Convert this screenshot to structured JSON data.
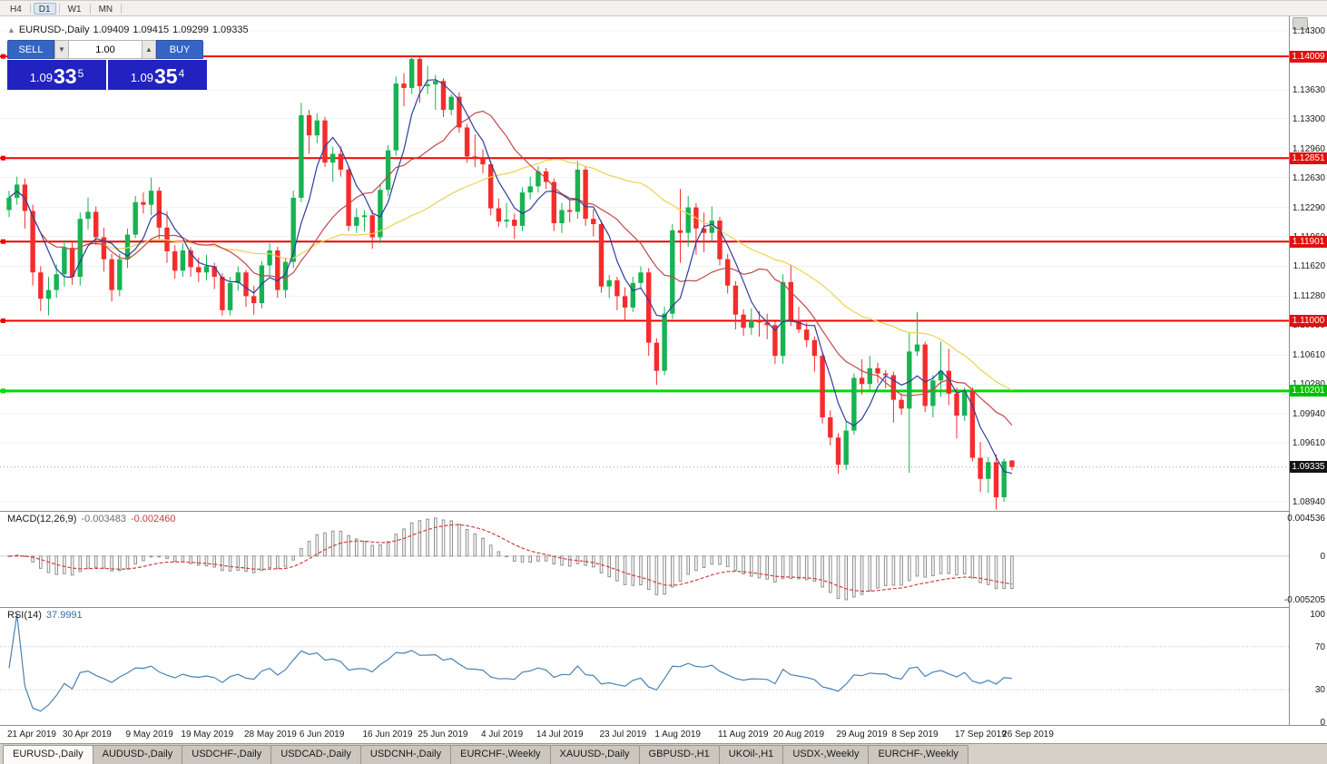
{
  "icons": {
    "collapse_arrow": "▲",
    "spin_down": "▼",
    "spin_up": "▲"
  },
  "toolbar": {
    "timeframes": [
      {
        "label": "H4",
        "active": false
      },
      {
        "label": "D1",
        "active": true
      },
      {
        "label": "W1",
        "active": false
      },
      {
        "label": "MN",
        "active": false
      }
    ]
  },
  "readout": {
    "symbol": "EURUSD-,Daily",
    "open": "1.09409",
    "high": "1.09415",
    "low": "1.09299",
    "close": "1.09335"
  },
  "trade_panel": {
    "sell_label": "SELL",
    "buy_label": "BUY",
    "volume": "1.00",
    "bid": {
      "prefix": "1.09",
      "big": "33",
      "sup": "5"
    },
    "ask": {
      "prefix": "1.09",
      "big": "35",
      "sup": "4"
    }
  },
  "price_axis": {
    "plain_labels": [
      "1.14300",
      "1.13630",
      "1.13300",
      "1.12960",
      "1.12630",
      "1.12290",
      "1.11960",
      "1.11620",
      "1.11280",
      "1.10950",
      "1.10610",
      "1.10280",
      "1.09940",
      "1.09610",
      "1.08940"
    ],
    "tags": [
      {
        "label": "1.14009",
        "bg": "#e01010",
        "fg": "#ffffff"
      },
      {
        "label": "1.12851",
        "bg": "#e01010",
        "fg": "#ffffff"
      },
      {
        "label": "1.11901",
        "bg": "#e01010",
        "fg": "#ffffff"
      },
      {
        "label": "1.11000",
        "bg": "#e01010",
        "fg": "#ffffff"
      },
      {
        "label": "1.10201",
        "bg": "#00c000",
        "fg": "#ffffff"
      },
      {
        "label": "1.09335",
        "bg": "#141414",
        "fg": "#ffffff"
      }
    ]
  },
  "chart_data": {
    "type": "candlestick",
    "title": "EURUSD-,Daily",
    "price_range": {
      "top": 1.14465,
      "bottom": 1.08836
    },
    "up_color": "#17b352",
    "down_color": "#f52c2c",
    "grid_color": "#f2f2f2",
    "current_price": 1.09335,
    "horizontal_lines": [
      {
        "price": 1.14009,
        "color": "#f00000",
        "width": 2
      },
      {
        "price": 1.12851,
        "color": "#f00000",
        "width": 2
      },
      {
        "price": 1.11901,
        "color": "#f00000",
        "width": 2
      },
      {
        "price": 1.11,
        "color": "#f00000",
        "width": 2
      },
      {
        "price": 1.10201,
        "color": "#00dc00",
        "width": 3
      }
    ],
    "ma_lines": [
      {
        "period": 5,
        "color": "#2e3d9c"
      },
      {
        "period": 13,
        "color": "#c04848"
      },
      {
        "period": 34,
        "color": "#ecd24e"
      }
    ],
    "date_ticks": [
      {
        "label": "21 Apr 2019",
        "index": 0
      },
      {
        "label": "30 Apr 2019",
        "index": 7
      },
      {
        "label": "9 May 2019",
        "index": 15
      },
      {
        "label": "19 May 2019",
        "index": 22
      },
      {
        "label": "28 May 2019",
        "index": 30
      },
      {
        "label": "6 Jun 2019",
        "index": 37
      },
      {
        "label": "16 Jun 2019",
        "index": 45
      },
      {
        "label": "25 Jun 2019",
        "index": 52
      },
      {
        "label": "4 Jul 2019",
        "index": 60
      },
      {
        "label": "14 Jul 2019",
        "index": 67
      },
      {
        "label": "23 Jul 2019",
        "index": 75
      },
      {
        "label": "1 Aug 2019",
        "index": 82
      },
      {
        "label": "11 Aug 2019",
        "index": 90
      },
      {
        "label": "20 Aug 2019",
        "index": 97
      },
      {
        "label": "29 Aug 2019",
        "index": 105
      },
      {
        "label": "8 Sep 2019",
        "index": 112
      },
      {
        "label": "17 Sep 2019",
        "index": 120
      },
      {
        "label": "26 Sep 2019",
        "index": 126
      }
    ],
    "candles": [
      [
        1.1226,
        1.1248,
        1.1218,
        1.124
      ],
      [
        1.124,
        1.1264,
        1.1232,
        1.1255
      ],
      [
        1.1255,
        1.1262,
        1.1205,
        1.1225
      ],
      [
        1.1225,
        1.1232,
        1.114,
        1.1155
      ],
      [
        1.1155,
        1.1162,
        1.1111,
        1.1125
      ],
      [
        1.1125,
        1.115,
        1.1106,
        1.1135
      ],
      [
        1.1135,
        1.1164,
        1.1126,
        1.1153
      ],
      [
        1.1153,
        1.1192,
        1.1139,
        1.1183
      ],
      [
        1.1183,
        1.119,
        1.1141,
        1.115
      ],
      [
        1.115,
        1.1223,
        1.114,
        1.1216
      ],
      [
        1.1216,
        1.124,
        1.1204,
        1.1224
      ],
      [
        1.1224,
        1.123,
        1.1186,
        1.1195
      ],
      [
        1.1195,
        1.1206,
        1.1156,
        1.117
      ],
      [
        1.117,
        1.1176,
        1.1122,
        1.1135
      ],
      [
        1.1135,
        1.1176,
        1.1128,
        1.117
      ],
      [
        1.117,
        1.1205,
        1.116,
        1.1198
      ],
      [
        1.1198,
        1.1242,
        1.1194,
        1.1235
      ],
      [
        1.1235,
        1.1246,
        1.1222,
        1.1232
      ],
      [
        1.1232,
        1.1263,
        1.122,
        1.1248
      ],
      [
        1.1248,
        1.1252,
        1.1192,
        1.1206
      ],
      [
        1.1206,
        1.1224,
        1.1166,
        1.1179
      ],
      [
        1.1179,
        1.1186,
        1.1148,
        1.1157
      ],
      [
        1.1157,
        1.1188,
        1.115,
        1.118
      ],
      [
        1.118,
        1.1184,
        1.115,
        1.1161
      ],
      [
        1.1161,
        1.1172,
        1.1144,
        1.1155
      ],
      [
        1.1155,
        1.1175,
        1.1146,
        1.1162
      ],
      [
        1.1162,
        1.1166,
        1.1136,
        1.115
      ],
      [
        1.115,
        1.1154,
        1.1106,
        1.1112
      ],
      [
        1.1112,
        1.115,
        1.1106,
        1.1143
      ],
      [
        1.1143,
        1.1162,
        1.1134,
        1.1155
      ],
      [
        1.1155,
        1.1158,
        1.1116,
        1.1128
      ],
      [
        1.1128,
        1.114,
        1.1107,
        1.112
      ],
      [
        1.112,
        1.1168,
        1.1114,
        1.1163
      ],
      [
        1.1163,
        1.1188,
        1.1152,
        1.118
      ],
      [
        1.118,
        1.1184,
        1.1126,
        1.1135
      ],
      [
        1.1135,
        1.1172,
        1.1126,
        1.1167
      ],
      [
        1.1167,
        1.1248,
        1.116,
        1.124
      ],
      [
        1.124,
        1.1348,
        1.1235,
        1.1334
      ],
      [
        1.1334,
        1.134,
        1.129,
        1.1311
      ],
      [
        1.1311,
        1.1336,
        1.1302,
        1.1328
      ],
      [
        1.1328,
        1.1332,
        1.1275,
        1.128
      ],
      [
        1.128,
        1.1298,
        1.1258,
        1.129
      ],
      [
        1.129,
        1.1298,
        1.1264,
        1.1272
      ],
      [
        1.1272,
        1.1276,
        1.1202,
        1.1208
      ],
      [
        1.1208,
        1.1228,
        1.12,
        1.1218
      ],
      [
        1.1218,
        1.1226,
        1.1202,
        1.122
      ],
      [
        1.122,
        1.1226,
        1.1182,
        1.1195
      ],
      [
        1.1195,
        1.1256,
        1.1188,
        1.1249
      ],
      [
        1.1249,
        1.13,
        1.1242,
        1.1294
      ],
      [
        1.1294,
        1.1378,
        1.1288,
        1.137
      ],
      [
        1.137,
        1.1382,
        1.1344,
        1.1365
      ],
      [
        1.1365,
        1.1401,
        1.1358,
        1.1398
      ],
      [
        1.1398,
        1.14,
        1.1348,
        1.1367
      ],
      [
        1.1367,
        1.139,
        1.1358,
        1.1369
      ],
      [
        1.1369,
        1.138,
        1.134,
        1.1373
      ],
      [
        1.1373,
        1.1376,
        1.1332,
        1.134
      ],
      [
        1.134,
        1.1358,
        1.1334,
        1.1355
      ],
      [
        1.1355,
        1.136,
        1.1314,
        1.132
      ],
      [
        1.132,
        1.1324,
        1.128,
        1.1287
      ],
      [
        1.1287,
        1.1312,
        1.1275,
        1.1285
      ],
      [
        1.1285,
        1.1295,
        1.1268,
        1.1278
      ],
      [
        1.1278,
        1.1282,
        1.122,
        1.1228
      ],
      [
        1.1228,
        1.1239,
        1.1207,
        1.1213
      ],
      [
        1.1213,
        1.1234,
        1.1206,
        1.1215
      ],
      [
        1.1215,
        1.1222,
        1.1193,
        1.1208
      ],
      [
        1.1208,
        1.1252,
        1.1202,
        1.1246
      ],
      [
        1.1246,
        1.1264,
        1.1238,
        1.1253
      ],
      [
        1.1253,
        1.1276,
        1.1246,
        1.127
      ],
      [
        1.127,
        1.1274,
        1.125,
        1.1258
      ],
      [
        1.1258,
        1.1262,
        1.1202,
        1.1211
      ],
      [
        1.1211,
        1.1234,
        1.12,
        1.1226
      ],
      [
        1.1226,
        1.1238,
        1.1212,
        1.1224
      ],
      [
        1.1224,
        1.1282,
        1.1216,
        1.1272
      ],
      [
        1.1272,
        1.1276,
        1.1208,
        1.1216
      ],
      [
        1.1216,
        1.1227,
        1.1196,
        1.121
      ],
      [
        1.121,
        1.1214,
        1.1132,
        1.1139
      ],
      [
        1.1139,
        1.1152,
        1.1126,
        1.1146
      ],
      [
        1.1146,
        1.115,
        1.1112,
        1.1128
      ],
      [
        1.1128,
        1.1138,
        1.1101,
        1.1115
      ],
      [
        1.1115,
        1.115,
        1.111,
        1.1143
      ],
      [
        1.1143,
        1.1162,
        1.1136,
        1.1155
      ],
      [
        1.1155,
        1.116,
        1.106,
        1.1075
      ],
      [
        1.1075,
        1.108,
        1.1027,
        1.1043
      ],
      [
        1.1043,
        1.1116,
        1.1038,
        1.1108
      ],
      [
        1.1108,
        1.121,
        1.1102,
        1.1203
      ],
      [
        1.1203,
        1.125,
        1.1166,
        1.12
      ],
      [
        1.12,
        1.1242,
        1.1184,
        1.1229
      ],
      [
        1.1229,
        1.1234,
        1.1175,
        1.1205
      ],
      [
        1.1205,
        1.1223,
        1.1178,
        1.12
      ],
      [
        1.12,
        1.123,
        1.119,
        1.1214
      ],
      [
        1.1214,
        1.1218,
        1.1163,
        1.117
      ],
      [
        1.117,
        1.1176,
        1.1131,
        1.114
      ],
      [
        1.114,
        1.1145,
        1.109,
        1.1107
      ],
      [
        1.1107,
        1.1113,
        1.1083,
        1.1092
      ],
      [
        1.1092,
        1.1114,
        1.1084,
        1.11
      ],
      [
        1.11,
        1.1111,
        1.1082,
        1.1098
      ],
      [
        1.1098,
        1.1108,
        1.1079,
        1.1095
      ],
      [
        1.1095,
        1.1099,
        1.1051,
        1.106
      ],
      [
        1.106,
        1.1153,
        1.1051,
        1.1144
      ],
      [
        1.1144,
        1.1164,
        1.1094,
        1.1101
      ],
      [
        1.1101,
        1.1116,
        1.1086,
        1.109
      ],
      [
        1.109,
        1.1098,
        1.107,
        1.1078
      ],
      [
        1.1078,
        1.1082,
        1.1042,
        1.106
      ],
      [
        1.106,
        1.1065,
        1.0983,
        1.099
      ],
      [
        1.099,
        1.0998,
        1.0958,
        1.0967
      ],
      [
        1.0967,
        1.0972,
        1.0926,
        1.0936
      ],
      [
        1.0936,
        1.0985,
        1.093,
        1.0975
      ],
      [
        1.0975,
        1.104,
        1.097,
        1.1035
      ],
      [
        1.1035,
        1.1056,
        1.1016,
        1.1028
      ],
      [
        1.1028,
        1.106,
        1.102,
        1.1046
      ],
      [
        1.1046,
        1.1052,
        1.1029,
        1.104
      ],
      [
        1.104,
        1.1044,
        1.1023,
        1.1038
      ],
      [
        1.1038,
        1.1042,
        1.0984,
        1.101
      ],
      [
        1.101,
        1.1017,
        1.0993,
        1.1
      ],
      [
        1.1,
        1.1087,
        1.0927,
        1.1065
      ],
      [
        1.1065,
        1.111,
        1.106,
        1.1073
      ],
      [
        1.1073,
        1.1076,
        1.0996,
        1.1003
      ],
      [
        1.1003,
        1.1038,
        1.099,
        1.1032
      ],
      [
        1.1032,
        1.1076,
        1.1013,
        1.1043
      ],
      [
        1.1043,
        1.1068,
        1.1004,
        1.1017
      ],
      [
        1.1017,
        1.1024,
        1.0966,
        1.0992
      ],
      [
        1.0992,
        1.1024,
        1.0986,
        1.102
      ],
      [
        1.102,
        1.1024,
        1.094,
        1.0944
      ],
      [
        1.0944,
        1.0962,
        1.0905,
        1.092
      ],
      [
        1.092,
        1.0945,
        1.0904,
        1.0939
      ],
      [
        1.0939,
        1.0948,
        1.0885,
        1.0899
      ],
      [
        1.0899,
        1.0943,
        1.0894,
        1.094
      ],
      [
        1.09409,
        1.09415,
        1.09299,
        1.09335
      ]
    ]
  },
  "macd_panel": {
    "label": "MACD(12,26,9)",
    "main_value": "-0.003483",
    "signal_value": "-0.002460",
    "fast": 12,
    "slow": 26,
    "signal": 9,
    "axis_labels": [
      "0.004536",
      "0",
      "-0.005205"
    ],
    "max": 0.004536,
    "min": -0.005205,
    "bar_color": "#8e8e8e",
    "signal_color": "#d04040"
  },
  "rsi_panel": {
    "label": "RSI(14)",
    "value": "37.9991",
    "period": 14,
    "axis_labels": [
      "100",
      "70",
      "30",
      "0"
    ],
    "levels": [
      70,
      30
    ],
    "line_color": "#4a82b4",
    "level_color": "#c0c0c0"
  },
  "tabs": [
    {
      "label": "EURUSD-,Daily",
      "active": true
    },
    {
      "label": "AUDUSD-,Daily",
      "active": false
    },
    {
      "label": "USDCHF-,Daily",
      "active": false
    },
    {
      "label": "USDCAD-,Daily",
      "active": false
    },
    {
      "label": "USDCNH-,Daily",
      "active": false
    },
    {
      "label": "EURCHF-,Weekly",
      "active": false
    },
    {
      "label": "XAUUSD-,Daily",
      "active": false
    },
    {
      "label": "GBPUSD-,H1",
      "active": false
    },
    {
      "label": "UKOil-,H1",
      "active": false
    },
    {
      "label": "USDX-,Weekly",
      "active": false
    },
    {
      "label": "EURCHF-,Weekly",
      "active": false
    }
  ]
}
